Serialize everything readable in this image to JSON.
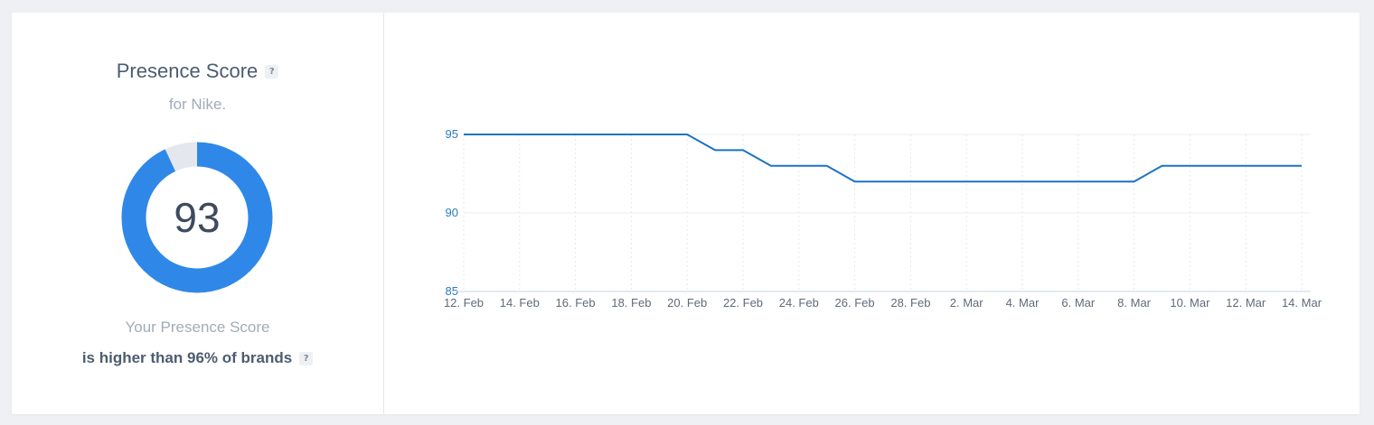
{
  "score_panel": {
    "title": "Presence Score",
    "help_icon_glyph": "?",
    "subtitle": "for Nike.",
    "score": 93,
    "score_fraction": 0.93,
    "caption_line1": "Your Presence Score",
    "caption_line2": "is higher than 96% of brands",
    "colors": {
      "accent": "#2f88e8",
      "remaining": "#e4e8ee"
    }
  },
  "chart_data": {
    "type": "line",
    "x_tick_labels": [
      "12. Feb",
      "14. Feb",
      "16. Feb",
      "18. Feb",
      "20. Feb",
      "22. Feb",
      "24. Feb",
      "26. Feb",
      "28. Feb",
      "2. Mar",
      "4. Mar",
      "6. Mar",
      "8. Mar",
      "10. Mar",
      "12. Mar",
      "14. Mar"
    ],
    "x": [
      "12. Feb",
      "13. Feb",
      "14. Feb",
      "15. Feb",
      "16. Feb",
      "17. Feb",
      "18. Feb",
      "19. Feb",
      "20. Feb",
      "21. Feb",
      "22. Feb",
      "23. Feb",
      "24. Feb",
      "25. Feb",
      "26. Feb",
      "27. Feb",
      "28. Feb",
      "1. Mar",
      "2. Mar",
      "3. Mar",
      "4. Mar",
      "5. Mar",
      "6. Mar",
      "7. Mar",
      "8. Mar",
      "9. Mar",
      "10. Mar",
      "11. Mar",
      "12. Mar",
      "13. Mar",
      "14. Mar"
    ],
    "series": [
      {
        "values": [
          95,
          95,
          95,
          95,
          95,
          95,
          95,
          95,
          95,
          94,
          94,
          93,
          93,
          93,
          92,
          92,
          92,
          92,
          92,
          92,
          92,
          92,
          92,
          92,
          92,
          93,
          93,
          93,
          93,
          93,
          93
        ],
        "color": "#1a74c2"
      }
    ],
    "y_ticks": [
      85,
      90,
      95
    ],
    "ylim": [
      85,
      95
    ],
    "grid": true,
    "title": "",
    "xlabel": "",
    "ylabel": ""
  }
}
